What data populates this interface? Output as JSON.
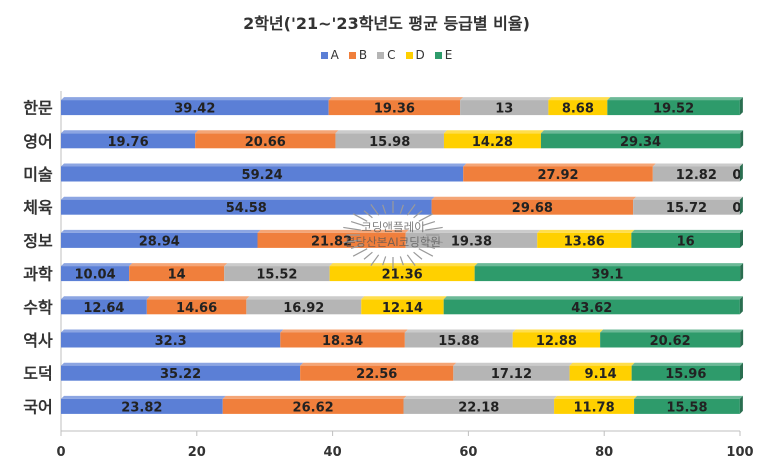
{
  "chart_data": {
    "type": "bar",
    "orientation": "horizontal",
    "stacked": true,
    "title": "2학년('21~'23학년도 평균 등급별 비율)",
    "categories": [
      "국어",
      "도덕",
      "역사",
      "수학",
      "과학",
      "정보",
      "체육",
      "미술",
      "영어",
      "한문"
    ],
    "series": [
      {
        "name": "A",
        "color": "#5b7fd6",
        "values": [
          23.82,
          35.22,
          32.3,
          12.64,
          10.04,
          28.94,
          54.58,
          59.24,
          19.76,
          39.42
        ]
      },
      {
        "name": "B",
        "color": "#f07f3c",
        "values": [
          26.62,
          22.56,
          18.34,
          14.66,
          14,
          21.82,
          29.68,
          27.92,
          20.66,
          19.36
        ]
      },
      {
        "name": "C",
        "color": "#b5b5b5",
        "values": [
          22.18,
          17.12,
          15.88,
          16.92,
          15.52,
          19.38,
          15.72,
          12.82,
          15.98,
          13
        ]
      },
      {
        "name": "D",
        "color": "#ffd000",
        "values": [
          11.78,
          9.14,
          12.88,
          12.14,
          21.36,
          13.86,
          0,
          0,
          14.28,
          8.68
        ]
      },
      {
        "name": "E",
        "color": "#2e9b6b",
        "values": [
          15.58,
          15.96,
          20.62,
          43.62,
          39.1,
          16,
          0,
          0,
          29.34,
          19.52
        ]
      }
    ],
    "value_labels": {
      "국어": [
        "23.82",
        "26.62",
        "22.18",
        "11.78",
        "15.58"
      ],
      "도덕": [
        "35.22",
        "22.56",
        "17.12",
        "9.14",
        "15.96"
      ],
      "역사": [
        "32.3",
        "18.34",
        "15.88",
        "12.88",
        "20.62"
      ],
      "수학": [
        "12.64",
        "14.66",
        "16.92",
        "12.14",
        "43.62"
      ],
      "과학": [
        "10.04",
        "14",
        "15.52",
        "21.36",
        "39.1"
      ],
      "정보": [
        "28.94",
        "21.82",
        "19.38",
        "13.86",
        "16"
      ],
      "체육": [
        "54.58",
        "29.68",
        "15.72",
        "0",
        ""
      ],
      "미술": [
        "59.24",
        "27.92",
        "12.82",
        "0",
        ""
      ],
      "영어": [
        "19.76",
        "20.66",
        "15.98",
        "14.28",
        "29.34"
      ],
      "한문": [
        "39.42",
        "19.36",
        "13",
        "8.68",
        "19.52"
      ]
    },
    "xlim": [
      0,
      100
    ],
    "x_ticks": [
      "0",
      "20",
      "40",
      "60",
      "80",
      "100"
    ],
    "xlabel": "",
    "ylabel": "",
    "legend_position": "top",
    "grid": false
  },
  "watermark": {
    "line1": "코딩앤플레이",
    "line2": "분당산본AI코딩학원"
  }
}
